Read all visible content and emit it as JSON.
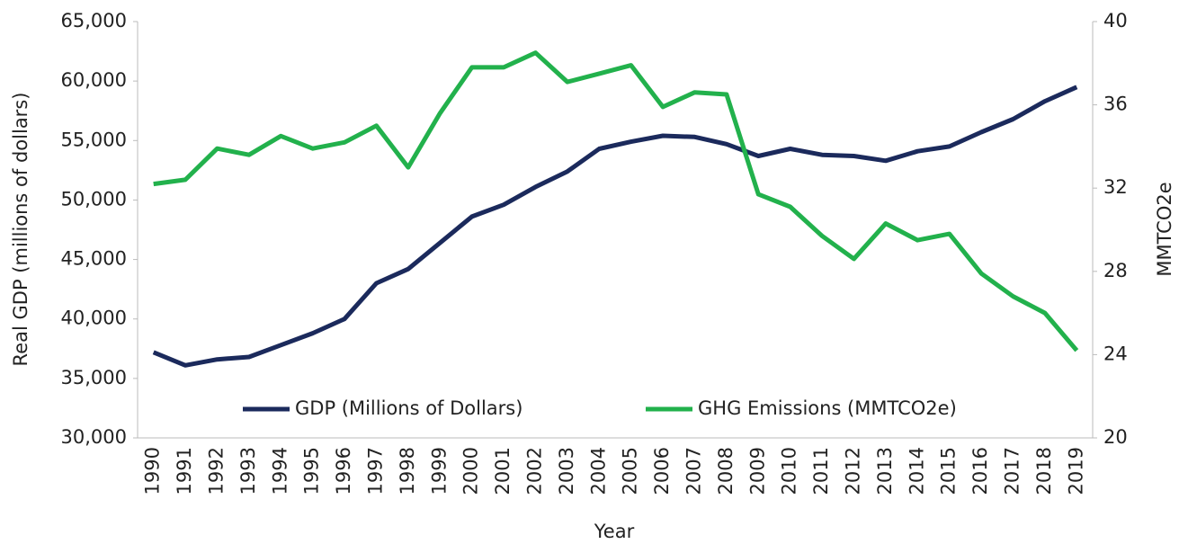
{
  "chart_data": {
    "type": "line",
    "categories": [
      "1990",
      "1991",
      "1992",
      "1993",
      "1994",
      "1995",
      "1996",
      "1997",
      "1998",
      "1999",
      "2000",
      "2001",
      "2002",
      "2003",
      "2004",
      "2005",
      "2006",
      "2007",
      "2008",
      "2009",
      "2010",
      "2011",
      "2012",
      "2013",
      "2014",
      "2015",
      "2016",
      "2017",
      "2018",
      "2019"
    ],
    "series": [
      {
        "name": "GDP (Millions of Dollars)",
        "color": "#1b2a5c",
        "axis": "y",
        "values": [
          37200,
          36100,
          36600,
          36800,
          37800,
          38800,
          40000,
          43000,
          44200,
          46400,
          48600,
          49600,
          51100,
          52400,
          54300,
          54900,
          55400,
          55300,
          54700,
          53700,
          54300,
          53800,
          53700,
          53300,
          54100,
          54500,
          55700,
          56800,
          58300,
          59500
        ]
      },
      {
        "name": "GHG Emissions (MMTCO2e)",
        "color": "#22b14c",
        "axis": "y2",
        "values": [
          32.2,
          32.4,
          33.9,
          33.6,
          34.5,
          33.9,
          34.2,
          35.0,
          33.0,
          35.6,
          37.8,
          37.8,
          38.5,
          37.1,
          37.5,
          37.9,
          35.9,
          36.6,
          36.5,
          31.7,
          31.1,
          29.7,
          28.6,
          30.3,
          29.5,
          29.8,
          27.9,
          26.8,
          26.0,
          24.2
        ]
      }
    ],
    "x_label": "Year",
    "y_label": "Real GDP (millions of dollars)",
    "y2_label": "MMTCO2e",
    "ylim": [
      30000,
      65000
    ],
    "yticks": [
      {
        "value": 30000,
        "label": "30,000"
      },
      {
        "value": 35000,
        "label": "35,000"
      },
      {
        "value": 40000,
        "label": "40,000"
      },
      {
        "value": 45000,
        "label": "45,000"
      },
      {
        "value": 50000,
        "label": "50,000"
      },
      {
        "value": 55000,
        "label": "55,000"
      },
      {
        "value": 60000,
        "label": "60,000"
      },
      {
        "value": 65000,
        "label": "65,000"
      }
    ],
    "y2lim": [
      20,
      40
    ],
    "y2ticks": [
      20,
      24,
      28,
      32,
      36,
      40
    ],
    "legend": "bottom",
    "grid": false
  }
}
